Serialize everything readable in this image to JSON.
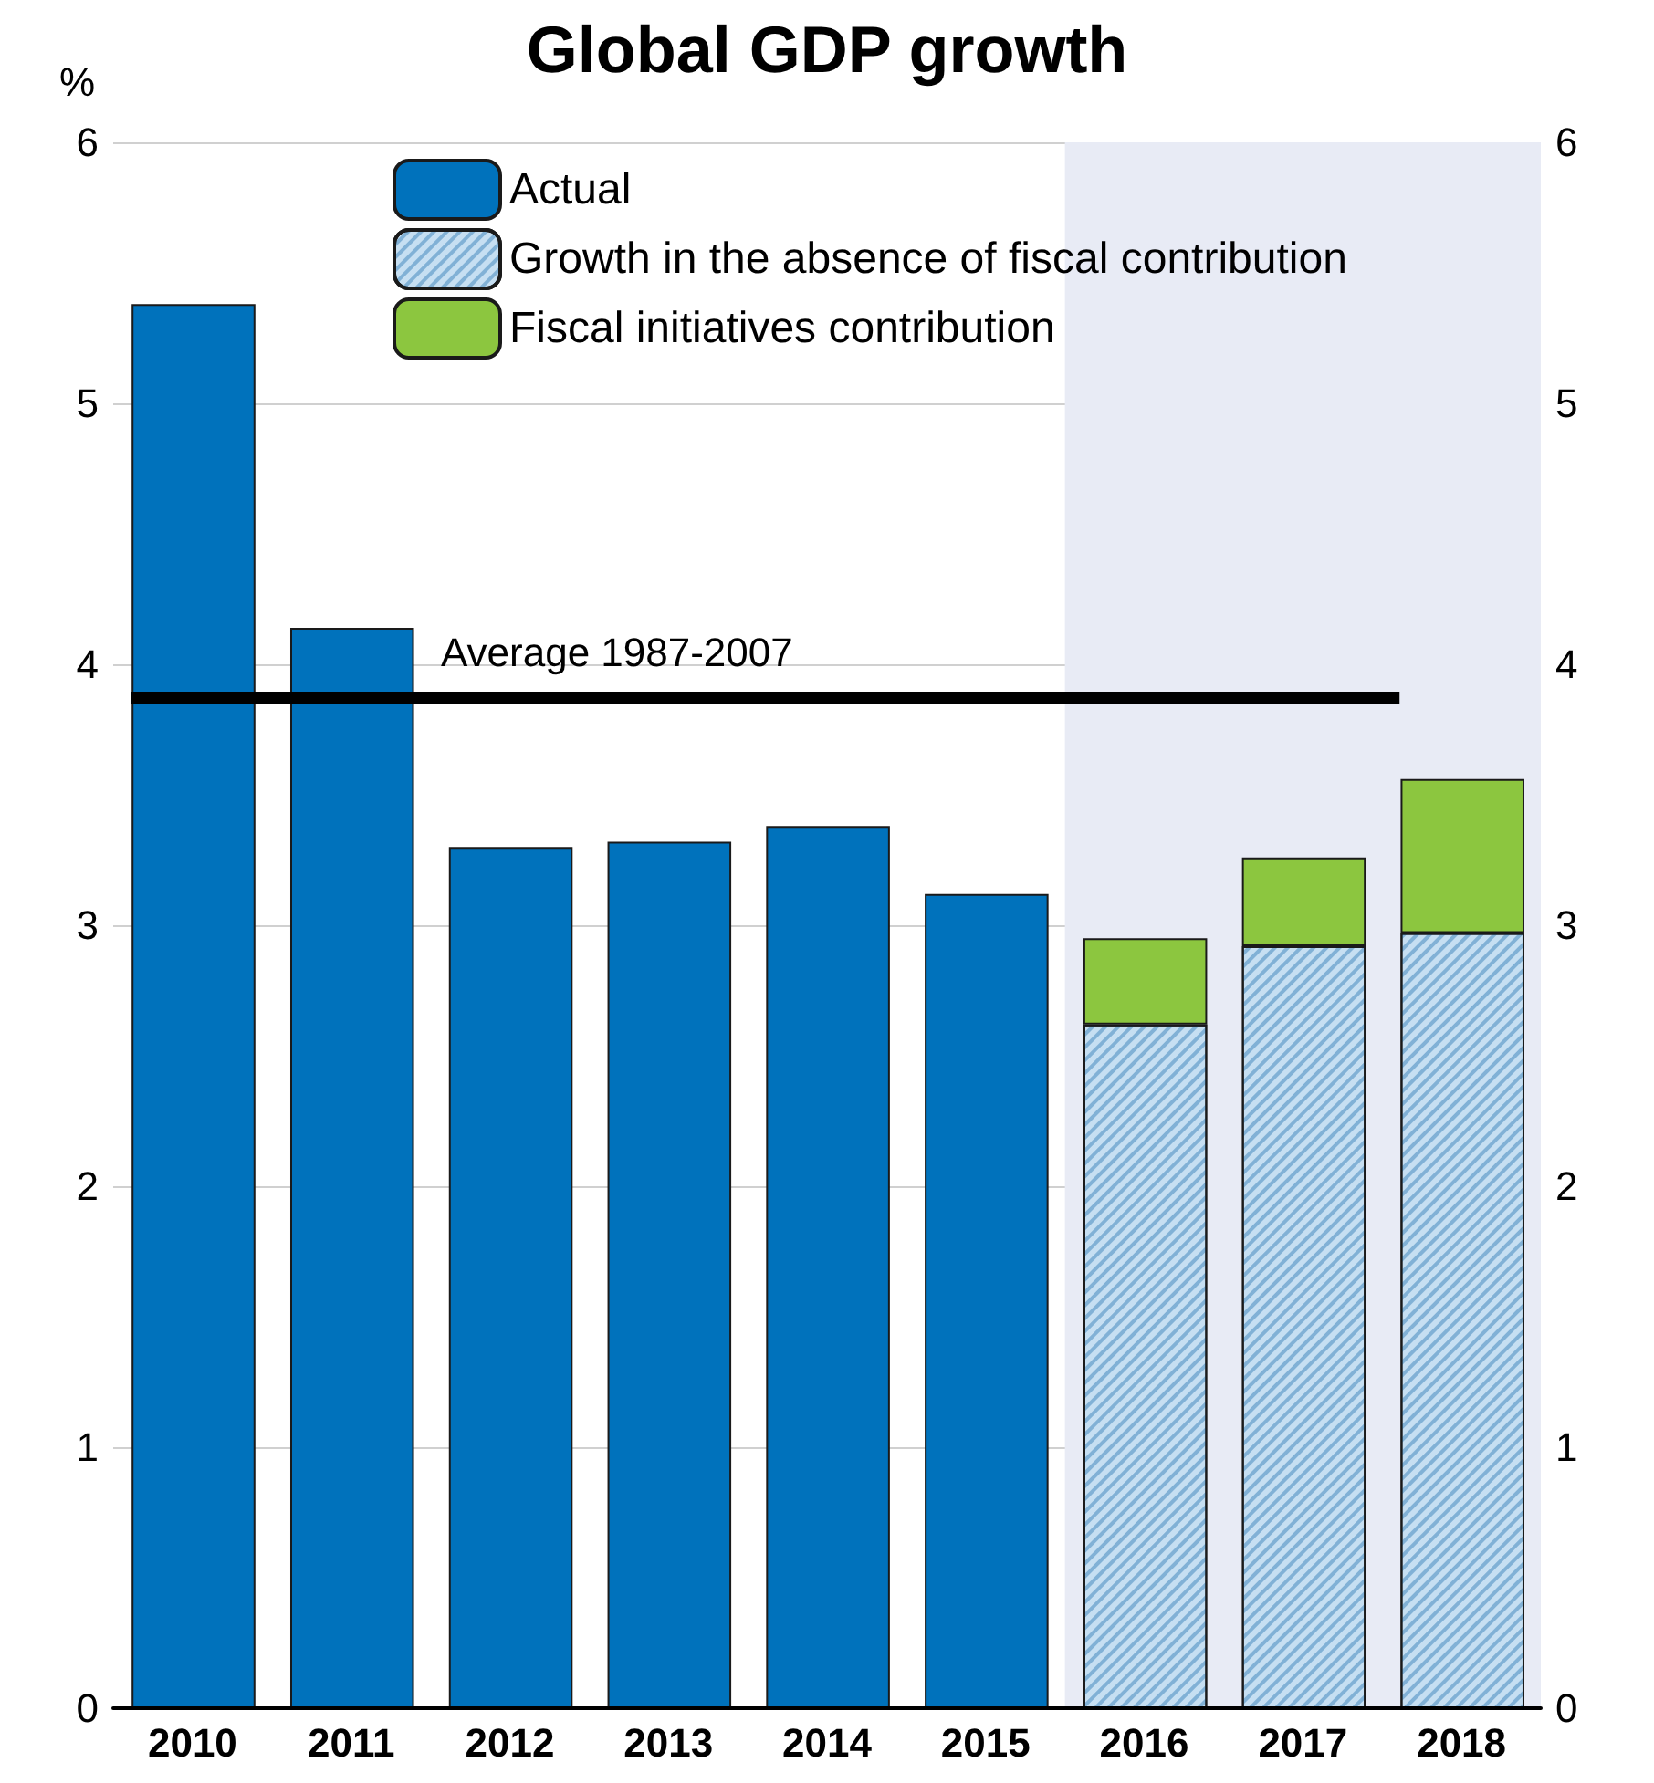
{
  "chart_data": {
    "type": "bar",
    "title": "Global GDP growth",
    "ylabel": "%",
    "categories": [
      "2010",
      "2011",
      "2012",
      "2013",
      "2014",
      "2015",
      "2016",
      "2017",
      "2018"
    ],
    "series": [
      {
        "name": "Actual",
        "color": "#0072bc",
        "values": [
          5.38,
          4.14,
          3.3,
          3.32,
          3.38,
          3.12,
          null,
          null,
          null
        ]
      },
      {
        "name": "Growth in the absence of fiscal contribution",
        "color": "#c6dff2",
        "values": [
          null,
          null,
          null,
          null,
          null,
          null,
          2.62,
          2.92,
          2.97
        ]
      },
      {
        "name": "Fiscal initiatives contribution",
        "color": "#8cc63f",
        "values": [
          null,
          null,
          null,
          null,
          null,
          null,
          0.33,
          0.34,
          0.59
        ]
      }
    ],
    "stacked": true,
    "ylim": [
      0,
      6
    ],
    "yticks": [
      0,
      1,
      2,
      3,
      4,
      5,
      6
    ],
    "y2lim": [
      0,
      6
    ],
    "y2ticks": [
      0,
      1,
      2,
      3,
      4,
      5,
      6
    ],
    "ref_lines": [
      {
        "axis": "y",
        "value": 3.87,
        "label": "Average 1987-2007",
        "color": "#000000"
      }
    ],
    "bands": [
      {
        "axis": "x",
        "from": "2016",
        "to": "2018",
        "color": "#e8ebf5"
      }
    ],
    "grid": "y",
    "legend": "top left"
  }
}
